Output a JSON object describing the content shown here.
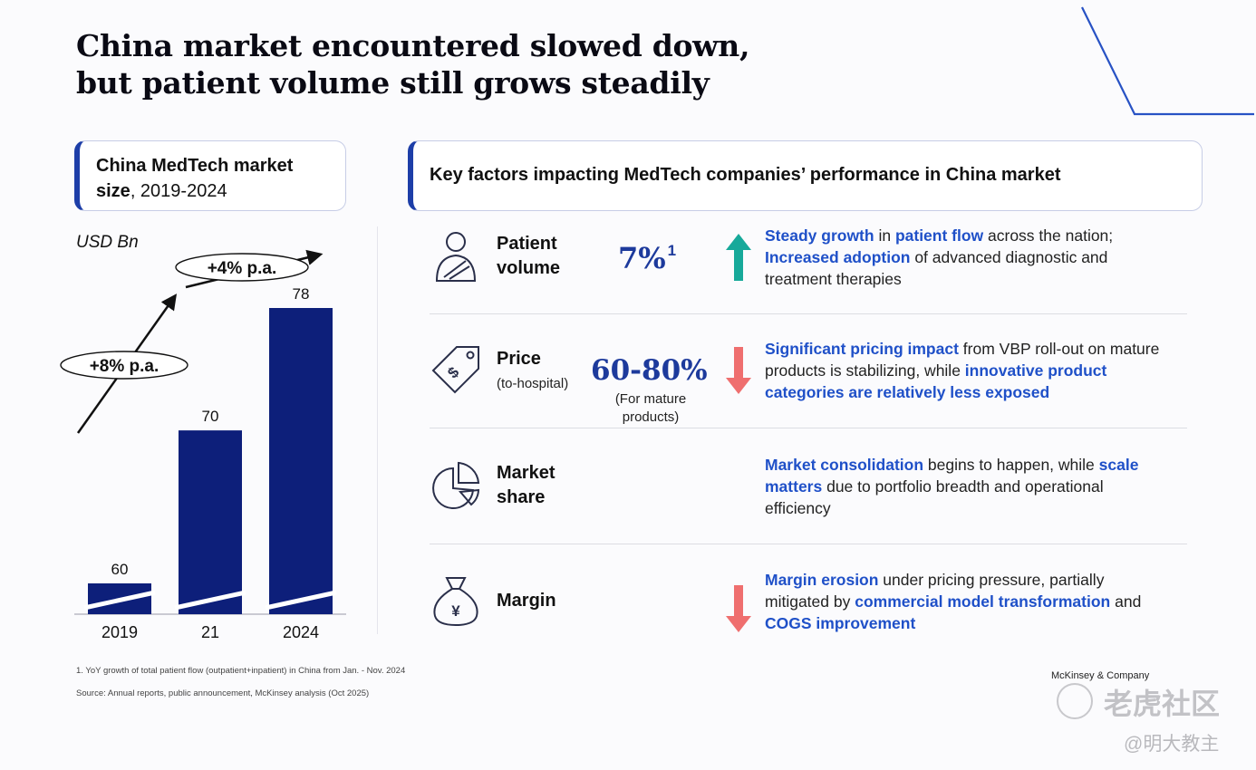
{
  "title": {
    "line1": "China market encountered slowed down,",
    "line2": "but patient volume still grows steadily"
  },
  "left_panel": {
    "title_bold": "China MedTech market",
    "title_bold2": "size",
    "title_rest": ", 2019-2024"
  },
  "right_panel": {
    "title": "Key factors impacting MedTech companies’ performance in China market"
  },
  "chart_data": {
    "type": "bar",
    "title": "China MedTech market size, 2019-2024",
    "ylabel": "USD Bn",
    "categories": [
      "2019",
      "21",
      "2024"
    ],
    "values": [
      60,
      70,
      78
    ],
    "axis_break": true,
    "ylim": [
      55,
      80
    ],
    "growth_annotations": [
      {
        "label": "+8% p.a.",
        "from": "2019",
        "to": "21"
      },
      {
        "label": "+4% p.a.",
        "from": "21",
        "to": "2024"
      }
    ],
    "bar_color": "#0d1f7a"
  },
  "factors": [
    {
      "icon": "patient-icon",
      "label_line1": "Patient",
      "label_line2": "volume",
      "sublabel": "",
      "stat": "7%",
      "stat_sup": "1",
      "stat_sub_line1": "",
      "stat_sub_line2": "",
      "trend": "up",
      "desc": [
        {
          "hl": "Steady growth"
        },
        {
          "t": " in "
        },
        {
          "hl": "patient flow"
        },
        {
          "t": " across the nation; "
        },
        {
          "hl": "Increased adoption"
        },
        {
          "t": " of advanced diagnostic and treatment therapies"
        }
      ]
    },
    {
      "icon": "price-tag-icon",
      "label_line1": "Price",
      "label_line2": "",
      "sublabel": "(to-hospital)",
      "stat": "60-80%",
      "stat_sup": "",
      "stat_sub_line1": "(For mature",
      "stat_sub_line2": "products)",
      "trend": "down",
      "desc": [
        {
          "hl": "Significant pricing impact"
        },
        {
          "t": " from VBP roll-out on mature products is stabilizing, while "
        },
        {
          "hl": "innovative product categories are relatively less exposed"
        }
      ]
    },
    {
      "icon": "pie-chart-icon",
      "label_line1": "Market",
      "label_line2": "share",
      "sublabel": "",
      "stat": "",
      "stat_sup": "",
      "stat_sub_line1": "",
      "stat_sub_line2": "",
      "trend": "none",
      "desc": [
        {
          "hl": "Market consolidation"
        },
        {
          "t": " begins to happen, while "
        },
        {
          "hl": "scale matters"
        },
        {
          "t": " due to portfolio breadth and operational efficiency"
        }
      ]
    },
    {
      "icon": "money-bag-icon",
      "label_line1": "Margin",
      "label_line2": "",
      "sublabel": "",
      "stat": "",
      "stat_sup": "",
      "stat_sub_line1": "",
      "stat_sub_line2": "",
      "trend": "down",
      "desc": [
        {
          "hl": "Margin erosion"
        },
        {
          "t": " under pricing pressure, partially mitigated by "
        },
        {
          "hl": "commercial model transformation"
        },
        {
          "t": " and "
        },
        {
          "hl": "COGS improvement"
        }
      ]
    }
  ],
  "footnotes": {
    "note1": "1.    YoY growth of total patient flow (outpatient+inpatient) in China from Jan. - Nov. 2024",
    "source": "Source: Annual reports, public announcement, McKinsey analysis (Oct 2025)"
  },
  "brand": "McKinsey & Company",
  "watermark": {
    "main": "老虎社区",
    "sub": "@明大教主"
  },
  "colors": {
    "accent": "#1d3ea8",
    "highlight": "#1f50c8",
    "up": "#17a99a",
    "down": "#ef6f6f",
    "bar": "#0d1f7a"
  }
}
